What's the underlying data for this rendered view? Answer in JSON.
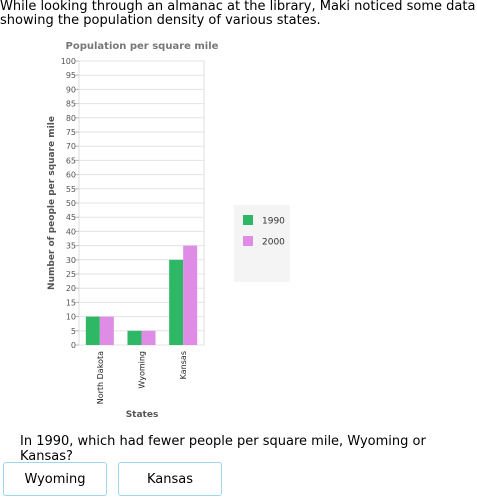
{
  "intro": "While looking through an almanac at the library, Maki noticed some data showing the population density of various states.",
  "question": "In 1990, which had fewer people per square mile, Wyoming or Kansas?",
  "answers": [
    "Wyoming",
    "Kansas"
  ],
  "chart_data": {
    "type": "bar",
    "title": "Population per square mile",
    "xlabel": "States",
    "ylabel": "Number of people per square mile",
    "categories": [
      "North Dakota",
      "Wyoming",
      "Kansas"
    ],
    "series": [
      {
        "name": "1990",
        "values": [
          10,
          5,
          30
        ],
        "color": "#2eb866"
      },
      {
        "name": "2000",
        "values": [
          10,
          5,
          35
        ],
        "color": "#de8ce6"
      }
    ],
    "ylim": [
      0,
      100
    ],
    "ytick_step": 5,
    "grid": true,
    "legend_position": "right"
  }
}
